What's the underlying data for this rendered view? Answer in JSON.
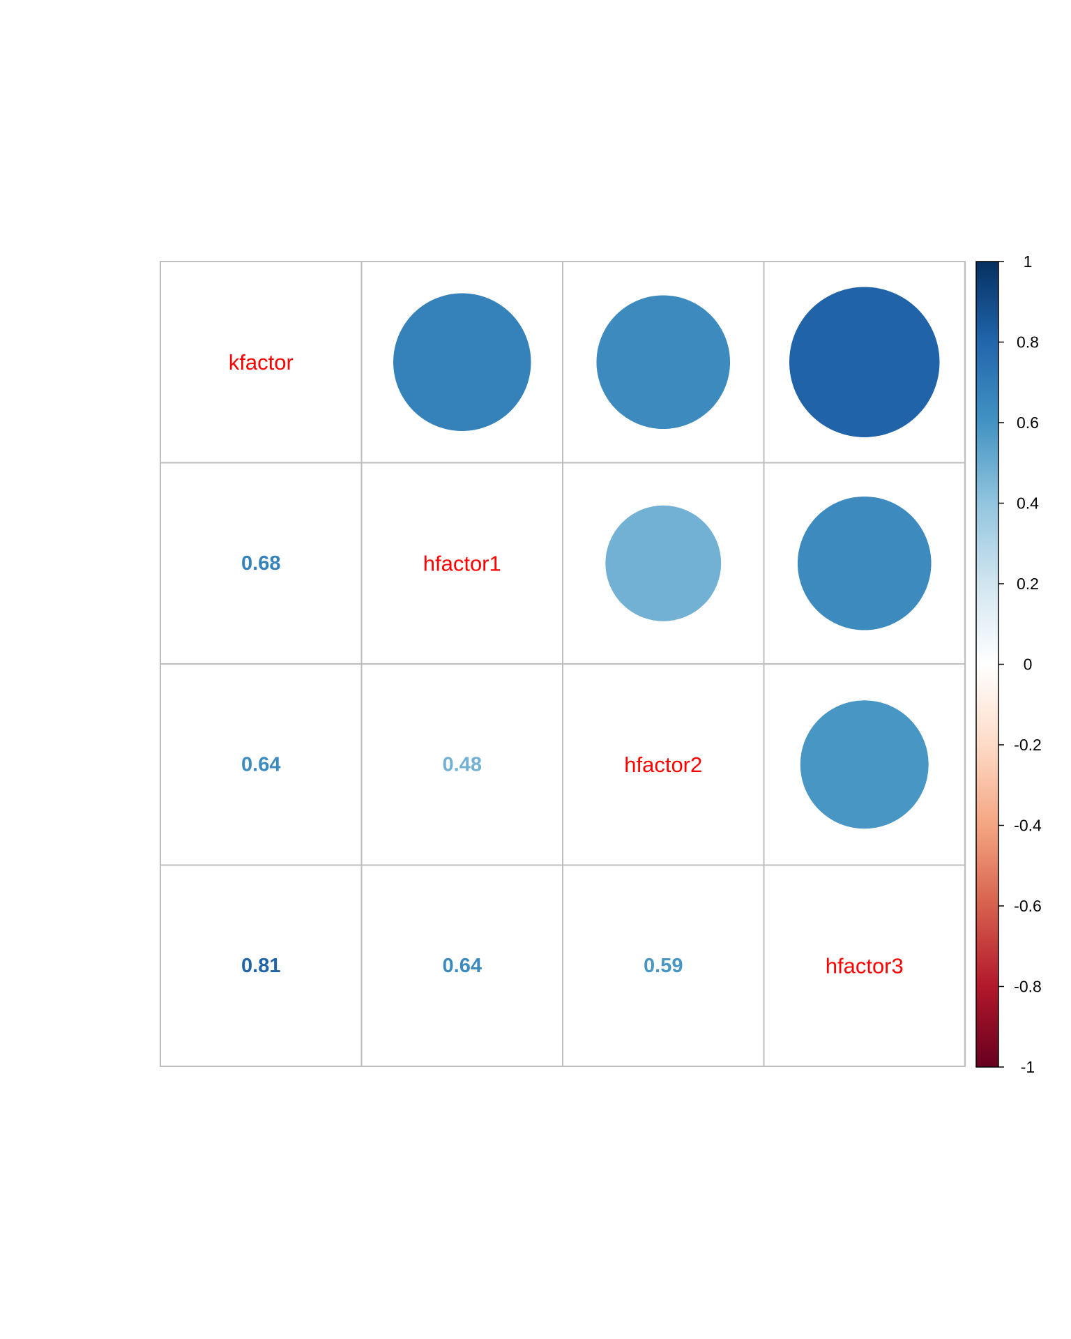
{
  "chart_data": {
    "type": "heatmap",
    "variables": [
      "kfactor",
      "hfactor1",
      "hfactor2",
      "hfactor3"
    ],
    "matrix": [
      [
        1.0,
        0.68,
        0.64,
        0.81
      ],
      [
        0.68,
        1.0,
        0.48,
        0.64
      ],
      [
        0.64,
        0.48,
        1.0,
        0.59
      ],
      [
        0.81,
        0.64,
        0.59,
        1.0
      ]
    ],
    "coefficient_labels": [
      [
        "",
        "",
        "",
        ""
      ],
      [
        "0.68",
        "",
        "",
        ""
      ],
      [
        "0.64",
        "0.48",
        "",
        ""
      ],
      [
        "0.81",
        "0.64",
        "0.59",
        ""
      ]
    ],
    "upper_method": "circle",
    "lower_method": "number",
    "diagonal": "variable names",
    "label_color": "#ff0000",
    "grid_color": "#bebebe",
    "colorbar": {
      "range": [
        -1,
        1
      ],
      "ticks": [
        "1",
        "0.8",
        "0.6",
        "0.4",
        "0.2",
        "0",
        "-0.2",
        "-0.4",
        "-0.6",
        "-0.8",
        "-1"
      ],
      "palette": [
        "#67001F",
        "#B2182B",
        "#D6604D",
        "#F4A582",
        "#FDDBC7",
        "#FFFFFF",
        "#D1E5F0",
        "#92C5DE",
        "#4393C3",
        "#2166AC",
        "#053061"
      ]
    },
    "title": "",
    "xlabel": "",
    "ylabel": ""
  }
}
